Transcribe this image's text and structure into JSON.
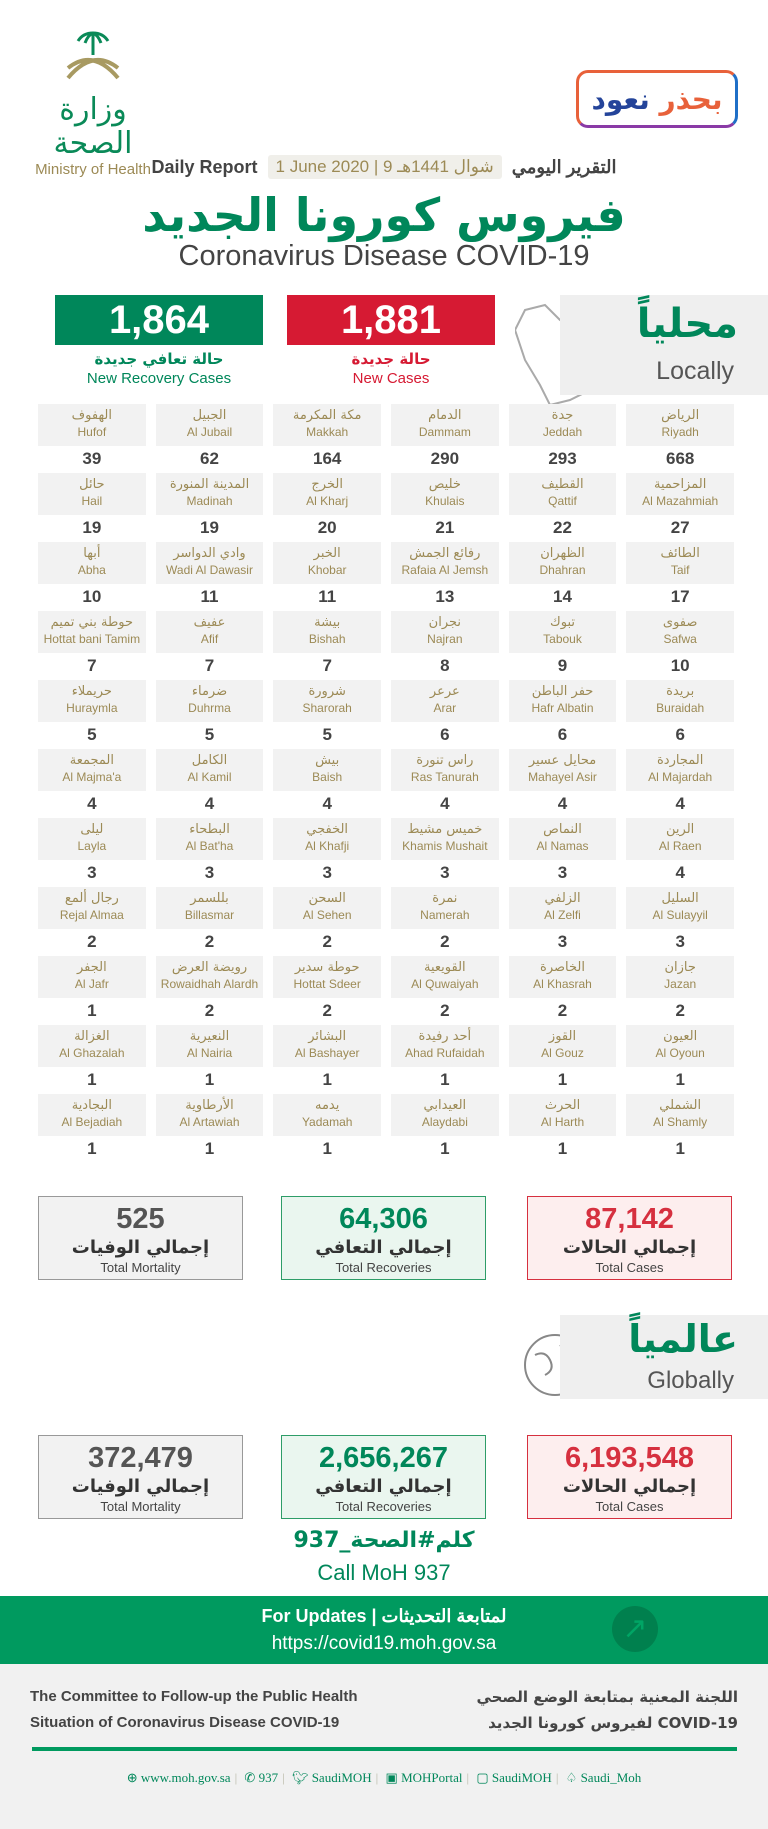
{
  "header": {
    "logo_ar": "وزارة الصحة",
    "logo_en": "Ministry of Health",
    "campaign_a": "نعود",
    "campaign_b": "بحذر"
  },
  "report": {
    "en": "Daily Report",
    "date": "1 June 2020 | 9 شوال 1441هـ",
    "ar": "التقرير اليومي"
  },
  "title": {
    "ar": "فيروس كورونا الجديد",
    "en": "Coronavirus Disease COVID-19"
  },
  "new": {
    "recovery": {
      "value": "1,864",
      "ar": "حالة تعافي جديدة",
      "en": "New Recovery Cases",
      "color": "#00875a"
    },
    "cases": {
      "value": "1,881",
      "ar": "حالة جديدة",
      "en": "New Cases",
      "color": "#d61a33"
    }
  },
  "locally": {
    "ar": "محلياً",
    "en": "Locally"
  },
  "cities": [
    {
      "ar": "الرياض",
      "en": "Riyadh",
      "n": "668"
    },
    {
      "ar": "جدة",
      "en": "Jeddah",
      "n": "293"
    },
    {
      "ar": "الدمام",
      "en": "Dammam",
      "n": "290"
    },
    {
      "ar": "مكة المكرمة",
      "en": "Makkah",
      "n": "164"
    },
    {
      "ar": "الجبيل",
      "en": "Al Jubail",
      "n": "62"
    },
    {
      "ar": "الهفوف",
      "en": "Hufof",
      "n": "39"
    },
    {
      "ar": "المزاحمية",
      "en": "Al Mazahmiah",
      "n": "27"
    },
    {
      "ar": "القطيف",
      "en": "Qattif",
      "n": "22"
    },
    {
      "ar": "خليص",
      "en": "Khulais",
      "n": "21"
    },
    {
      "ar": "الخرج",
      "en": "Al Kharj",
      "n": "20"
    },
    {
      "ar": "المدينة المنورة",
      "en": "Madinah",
      "n": "19"
    },
    {
      "ar": "حائل",
      "en": "Hail",
      "n": "19"
    },
    {
      "ar": "الطائف",
      "en": "Taif",
      "n": "17"
    },
    {
      "ar": "الظهران",
      "en": "Dhahran",
      "n": "14"
    },
    {
      "ar": "رفائع الجمش",
      "en": "Rafaia Al Jemsh",
      "n": "13"
    },
    {
      "ar": "الخبر",
      "en": "Khobar",
      "n": "11"
    },
    {
      "ar": "وادي الدواسر",
      "en": "Wadi Al Dawasir",
      "n": "11"
    },
    {
      "ar": "أبها",
      "en": "Abha",
      "n": "10"
    },
    {
      "ar": "صفوى",
      "en": "Safwa",
      "n": "10"
    },
    {
      "ar": "تبوك",
      "en": "Tabouk",
      "n": "9"
    },
    {
      "ar": "نجران",
      "en": "Najran",
      "n": "8"
    },
    {
      "ar": "بيشة",
      "en": "Bishah",
      "n": "7"
    },
    {
      "ar": "عفيف",
      "en": "Afif",
      "n": "7"
    },
    {
      "ar": "حوطة بني تميم",
      "en": "Hottat bani Tamim",
      "n": "7"
    },
    {
      "ar": "بريدة",
      "en": "Buraidah",
      "n": "6"
    },
    {
      "ar": "حفر الباطن",
      "en": "Hafr Albatin",
      "n": "6"
    },
    {
      "ar": "عرعر",
      "en": "Arar",
      "n": "6"
    },
    {
      "ar": "شرورة",
      "en": "Sharorah",
      "n": "5"
    },
    {
      "ar": "ضرماء",
      "en": "Duhrma",
      "n": "5"
    },
    {
      "ar": "حريملاء",
      "en": "Huraymla",
      "n": "5"
    },
    {
      "ar": "المجاردة",
      "en": "Al Majardah",
      "n": "4"
    },
    {
      "ar": "محايل عسير",
      "en": "Mahayel Asir",
      "n": "4"
    },
    {
      "ar": "راس تنورة",
      "en": "Ras Tanurah",
      "n": "4"
    },
    {
      "ar": "بيش",
      "en": "Baish",
      "n": "4"
    },
    {
      "ar": "الكامل",
      "en": "Al Kamil",
      "n": "4"
    },
    {
      "ar": "المجمعة",
      "en": "Al Majma'a",
      "n": "4"
    },
    {
      "ar": "الرين",
      "en": "Al Raen",
      "n": "4"
    },
    {
      "ar": "النماص",
      "en": "Al Namas",
      "n": "3"
    },
    {
      "ar": "خميس مشيط",
      "en": "Khamis Mushait",
      "n": "3"
    },
    {
      "ar": "الخفجي",
      "en": "Al Khafji",
      "n": "3"
    },
    {
      "ar": "البطحاء",
      "en": "Al Bat'ha",
      "n": "3"
    },
    {
      "ar": "ليلى",
      "en": "Layla",
      "n": "3"
    },
    {
      "ar": "السليل",
      "en": "Al Sulayyil",
      "n": "3"
    },
    {
      "ar": "الزلفي",
      "en": "Al Zelfi",
      "n": "3"
    },
    {
      "ar": "نمرة",
      "en": "Namerah",
      "n": "2"
    },
    {
      "ar": "السحن",
      "en": "Al Sehen",
      "n": "2"
    },
    {
      "ar": "بللسمر",
      "en": "Billasmar",
      "n": "2"
    },
    {
      "ar": "رجال ألمع",
      "en": "Rejal Almaa",
      "n": "2"
    },
    {
      "ar": "جازان",
      "en": "Jazan",
      "n": "2"
    },
    {
      "ar": "الخاصرة",
      "en": "Al Khasrah",
      "n": "2"
    },
    {
      "ar": "القويعية",
      "en": "Al Quwaiyah",
      "n": "2"
    },
    {
      "ar": "حوطة سدير",
      "en": "Hottat Sdeer",
      "n": "2"
    },
    {
      "ar": "رويضة العرض",
      "en": "Rowaidhah Alardh",
      "n": "2"
    },
    {
      "ar": "الجفر",
      "en": "Al Jafr",
      "n": "1"
    },
    {
      "ar": "العيون",
      "en": "Al Oyoun",
      "n": "1"
    },
    {
      "ar": "القوز",
      "en": "Al Gouz",
      "n": "1"
    },
    {
      "ar": "أحد رفيدة",
      "en": "Ahad Rufaidah",
      "n": "1"
    },
    {
      "ar": "البشائر",
      "en": "Al Bashayer",
      "n": "1"
    },
    {
      "ar": "النعيرية",
      "en": "Al Nairia",
      "n": "1"
    },
    {
      "ar": "الغزالة",
      "en": "Al Ghazalah",
      "n": "1"
    },
    {
      "ar": "الشملي",
      "en": "Al Shamly",
      "n": "1"
    },
    {
      "ar": "الحرث",
      "en": "Al Harth",
      "n": "1"
    },
    {
      "ar": "العيدابي",
      "en": "Alaydabi",
      "n": "1"
    },
    {
      "ar": "يدمه",
      "en": "Yadamah",
      "n": "1"
    },
    {
      "ar": "الأرطاوية",
      "en": "Al Artawiah",
      "n": "1"
    },
    {
      "ar": "البجادية",
      "en": "Al Bejadiah",
      "n": "1"
    }
  ],
  "local_totals": {
    "mortality": {
      "n": "525",
      "ar": "إجمالي الوفيات",
      "en": "Total Mortality"
    },
    "recoveries": {
      "n": "64,306",
      "ar": "إجمالي التعافي",
      "en": "Total Recoveries"
    },
    "cases": {
      "n": "87,142",
      "ar": "إجمالي الحالات",
      "en": "Total Cases"
    }
  },
  "globally": {
    "ar": "عالمياً",
    "en": "Globally"
  },
  "global_totals": {
    "mortality": {
      "n": "372,479",
      "ar": "إجمالي الوفيات",
      "en": "Total Mortality"
    },
    "recoveries": {
      "n": "2,656,267",
      "ar": "إجمالي التعافي",
      "en": "Total Recoveries"
    },
    "cases": {
      "n": "6,193,548",
      "ar": "إجمالي الحالات",
      "en": "Total Cases"
    }
  },
  "call": {
    "ar": "كلم#الصحة_937",
    "en": "Call MoH 937"
  },
  "updates": {
    "label": "For Updates  |  لمتابعة التحديثات",
    "url": "https://covid19.moh.gov.sa"
  },
  "committee": {
    "en1": "The Committee to Follow-up the Public Health",
    "en2": "Situation of Coronavirus Disease COVID-19",
    "ar1": "اللجنة المعنية بمتابعة الوضع الصحي",
    "ar2": "لفيروس كورونا الجديد COVID-19"
  },
  "social": [
    "www.moh.gov.sa",
    "937",
    "SaudiMOH",
    "MOHPortal",
    "SaudiMOH",
    "Saudi_Moh"
  ]
}
